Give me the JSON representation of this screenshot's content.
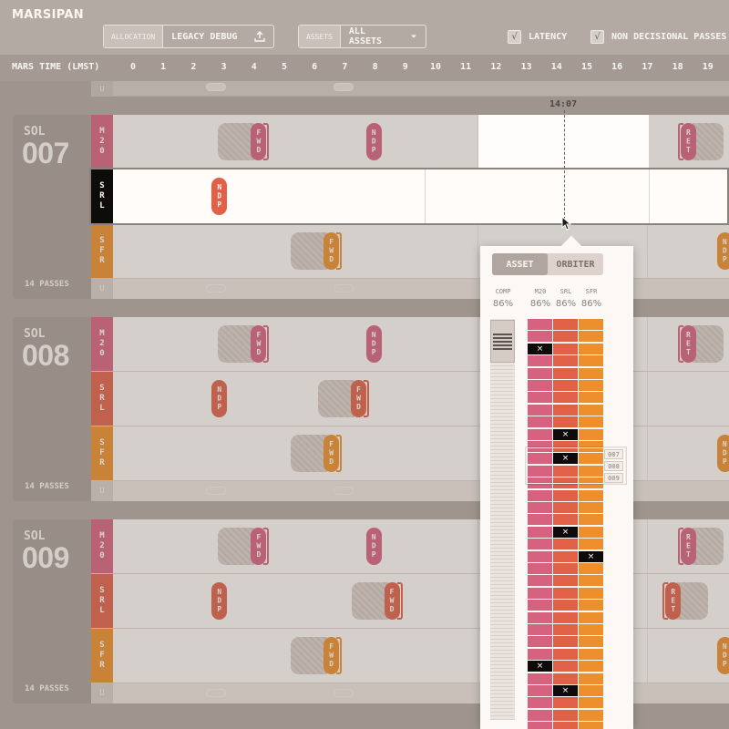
{
  "app": {
    "name": "MARSIPAN"
  },
  "toolbar": {
    "allocation": {
      "label": "ALLOCATION",
      "value": "LEGACY DEBUG"
    },
    "assets": {
      "label": "ASSETS",
      "value": "ALL ASSETS"
    },
    "latency": {
      "label": "LATENCY",
      "checked": true
    },
    "non_decisional": {
      "label": "NON DECISIONAL PASSES",
      "checked": true
    }
  },
  "time_axis": {
    "title": "MARS TIME (LMST)",
    "hours": [
      "0",
      "1",
      "2",
      "3",
      "4",
      "5",
      "6",
      "7",
      "8",
      "9",
      "10",
      "11",
      "12",
      "13",
      "14",
      "15",
      "16",
      "17",
      "18",
      "19"
    ]
  },
  "marker": {
    "time": "14:07"
  },
  "colors": {
    "m20": "#d6627f",
    "srl": "#e06048",
    "sfr": "#ec8f2c",
    "sidebar": "#a89e97"
  },
  "sols": [
    {
      "word": "SOL",
      "number": "007",
      "passes": "14 PASSES",
      "lanes": [
        {
          "tag": "M20",
          "passes": [
            {
              "label": "FWD",
              "hour": 3.9,
              "hatch": "left"
            },
            {
              "label": "NDP",
              "hour": 7.7
            },
            {
              "label": "RET",
              "hour": 18.1,
              "hatch": "right"
            }
          ]
        },
        {
          "tag": "SRL",
          "passes": [
            {
              "label": "NDP",
              "hour": 2.6
            }
          ]
        },
        {
          "tag": "SFR",
          "passes": [
            {
              "label": "FWD",
              "hour": 6.3,
              "hatch": "left"
            },
            {
              "label": "NDP",
              "hour": 19.3
            }
          ]
        }
      ],
      "unassigned": "U"
    },
    {
      "word": "SOL",
      "number": "008",
      "passes": "14 PASSES",
      "lanes": [
        {
          "tag": "M20",
          "passes": [
            {
              "label": "FWD",
              "hour": 3.9,
              "hatch": "left"
            },
            {
              "label": "NDP",
              "hour": 7.7
            },
            {
              "label": "RET",
              "hour": 18.1,
              "hatch": "right"
            }
          ]
        },
        {
          "tag": "SRL",
          "passes": [
            {
              "label": "NDP",
              "hour": 2.6
            },
            {
              "label": "FWD",
              "hour": 7.2,
              "hatch": "left"
            }
          ]
        },
        {
          "tag": "SFR",
          "passes": [
            {
              "label": "FWD",
              "hour": 6.3,
              "hatch": "left"
            },
            {
              "label": "NDP",
              "hour": 19.3
            }
          ]
        }
      ],
      "unassigned": "U"
    },
    {
      "word": "SOL",
      "number": "009",
      "passes": "14 PASSES",
      "lanes": [
        {
          "tag": "M20",
          "passes": [
            {
              "label": "FWD",
              "hour": 3.9,
              "hatch": "left"
            },
            {
              "label": "NDP",
              "hour": 7.7
            },
            {
              "label": "RET",
              "hour": 18.1,
              "hatch": "right"
            }
          ]
        },
        {
          "tag": "SRL",
          "passes": [
            {
              "label": "NDP",
              "hour": 2.6
            },
            {
              "label": "FWD",
              "hour": 8.3,
              "hatch": "left"
            },
            {
              "label": "RET",
              "hour": 17.6,
              "hatch": "right"
            }
          ]
        },
        {
          "tag": "SFR",
          "passes": [
            {
              "label": "FWD",
              "hour": 6.3,
              "hatch": "left"
            },
            {
              "label": "NDP",
              "hour": 19.3
            }
          ]
        }
      ],
      "unassigned": "U"
    }
  ],
  "prev_strip_tag": "U",
  "popover": {
    "tabs": [
      "ASSET",
      "ORBITER"
    ],
    "active_tab": "ASSET",
    "columns": [
      {
        "name": "COMP",
        "pct": "86%"
      },
      {
        "name": "M20",
        "pct": "86%"
      },
      {
        "name": "SRL",
        "pct": "86%"
      },
      {
        "name": "SFR",
        "pct": "86%"
      }
    ],
    "rows": 35,
    "failed_cells": [
      {
        "col": "M20",
        "row": 2
      },
      {
        "col": "SRL",
        "row": 9
      },
      {
        "col": "SRL",
        "row": 11
      },
      {
        "col": "SRL",
        "row": 17
      },
      {
        "col": "SFR",
        "row": 19
      },
      {
        "col": "M20",
        "row": 28
      },
      {
        "col": "SRL",
        "row": 30
      }
    ],
    "selected_sols": [
      "007",
      "008",
      "009"
    ]
  }
}
